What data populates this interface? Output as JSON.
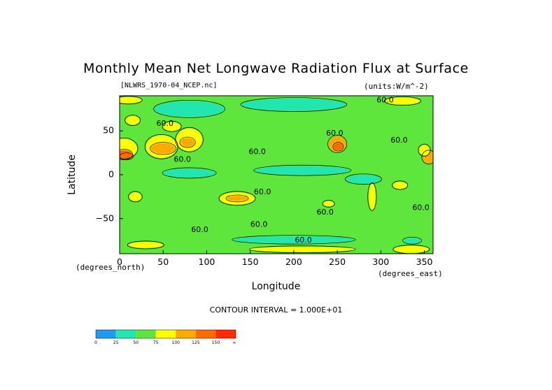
{
  "title": "Monthly Mean Net Longwave Radiation Flux at Surface",
  "file_label": "[NLWRS_1970-04_NCEP.nc]",
  "units_label": "(units:W/m^-2)",
  "y_axis_label": "Latitude",
  "x_axis_label": "Longitude",
  "y_units_label": "(degrees_north)",
  "x_units_label": "(degrees_east)",
  "contour_interval_label": "CONTOUR INTERVAL = 1.000E+01",
  "chart_data": {
    "type": "heatmap",
    "title": "Monthly Mean Net Longwave Radiation Flux at Surface",
    "xlabel": "Longitude",
    "ylabel": "Latitude",
    "xlim": [
      0,
      360
    ],
    "ylim": [
      -90,
      90
    ],
    "x_ticks": [
      "0",
      "50",
      "100",
      "150",
      "200",
      "250",
      "300",
      "350"
    ],
    "x_tick_values": [
      0,
      50,
      100,
      150,
      200,
      250,
      300,
      350
    ],
    "y_ticks": [
      "50",
      "0",
      "−50"
    ],
    "y_tick_values": [
      50,
      0,
      -50
    ],
    "background_value": 60,
    "contour_labels": [
      {
        "text": "60.0",
        "lon": 52,
        "lat": 58
      },
      {
        "text": "60.0",
        "lon": 72,
        "lat": 17
      },
      {
        "text": "60.0",
        "lon": 158,
        "lat": 26
      },
      {
        "text": "60.0",
        "lon": 247,
        "lat": 47
      },
      {
        "text": "60.0",
        "lon": 321,
        "lat": 39
      },
      {
        "text": "60.0",
        "lon": 164,
        "lat": -20
      },
      {
        "text": "60.0",
        "lon": 236,
        "lat": -43
      },
      {
        "text": "60.0",
        "lon": 346,
        "lat": -38
      },
      {
        "text": "60.0",
        "lon": 92,
        "lat": -63
      },
      {
        "text": "60.0",
        "lon": 160,
        "lat": -57
      },
      {
        "text": "60.0",
        "lon": 211,
        "lat": -75
      },
      {
        "text": "60.0",
        "lon": 305,
        "lat": 85
      }
    ],
    "features": [
      {
        "value": 90,
        "lon": 5,
        "lat": 30,
        "w": 30,
        "h": 22
      },
      {
        "value": 130,
        "lon": 5,
        "lat": 23,
        "w": 18,
        "h": 10
      },
      {
        "value": 140,
        "lon": 8,
        "lat": 21,
        "w": 14,
        "h": 6
      },
      {
        "value": 90,
        "lon": 48,
        "lat": 32,
        "w": 36,
        "h": 26
      },
      {
        "value": 120,
        "lon": 50,
        "lat": 30,
        "w": 28,
        "h": 12
      },
      {
        "value": 85,
        "lon": 80,
        "lat": 40,
        "w": 30,
        "h": 26
      },
      {
        "value": 115,
        "lon": 78,
        "lat": 37,
        "w": 16,
        "h": 10
      },
      {
        "value": 80,
        "lon": 15,
        "lat": 62,
        "w": 16,
        "h": 10
      },
      {
        "value": 80,
        "lon": 60,
        "lat": 55,
        "w": 20,
        "h": 10
      },
      {
        "value": 110,
        "lon": 250,
        "lat": 35,
        "w": 20,
        "h": 18
      },
      {
        "value": 130,
        "lon": 251,
        "lat": 32,
        "w": 10,
        "h": 8
      },
      {
        "value": 110,
        "lon": 355,
        "lat": 20,
        "w": 14,
        "h": 14
      },
      {
        "value": 85,
        "lon": 350,
        "lat": 28,
        "w": 12,
        "h": 12
      },
      {
        "value": 90,
        "lon": 135,
        "lat": -27,
        "w": 40,
        "h": 14
      },
      {
        "value": 105,
        "lon": 135,
        "lat": -27,
        "w": 24,
        "h": 6
      },
      {
        "value": 85,
        "lon": 18,
        "lat": -25,
        "w": 14,
        "h": 10
      },
      {
        "value": 85,
        "lon": 290,
        "lat": -25,
        "w": 8,
        "h": 30
      },
      {
        "value": 80,
        "lon": 240,
        "lat": -33,
        "w": 12,
        "h": 6
      },
      {
        "value": 80,
        "lon": 322,
        "lat": -12,
        "w": 16,
        "h": 8
      },
      {
        "value": 85,
        "lon": 10,
        "lat": 85,
        "w": 30,
        "h": 7
      },
      {
        "value": 85,
        "lon": 325,
        "lat": 84,
        "w": 40,
        "h": 8
      },
      {
        "value": 85,
        "lon": 210,
        "lat": -85,
        "w": 120,
        "h": 6
      },
      {
        "value": 85,
        "lon": 30,
        "lat": -80,
        "w": 40,
        "h": 7
      },
      {
        "value": 85,
        "lon": 335,
        "lat": -85,
        "w": 40,
        "h": 8
      },
      {
        "value": 40,
        "lon": 80,
        "lat": 75,
        "w": 80,
        "h": 18
      },
      {
        "value": 40,
        "lon": 200,
        "lat": 80,
        "w": 120,
        "h": 14
      },
      {
        "value": 40,
        "lon": 210,
        "lat": 5,
        "w": 110,
        "h": 10
      },
      {
        "value": 40,
        "lon": 80,
        "lat": 2,
        "w": 60,
        "h": 10
      },
      {
        "value": 40,
        "lon": 280,
        "lat": -5,
        "w": 40,
        "h": 10
      },
      {
        "value": 40,
        "lon": 200,
        "lat": -74,
        "w": 140,
        "h": 8
      },
      {
        "value": 25,
        "lon": 336,
        "lat": -75,
        "w": 20,
        "h": 6
      }
    ],
    "colorbar": {
      "ticks": [
        "0",
        "25",
        "50",
        "75",
        "100",
        "125",
        "150",
        "∞"
      ],
      "colors": [
        "#1e9bf0",
        "#22e6b0",
        "#5ee63c",
        "#ffff00",
        "#ffaa00",
        "#ff6a00",
        "#ff2a00"
      ],
      "bounds": [
        0,
        25,
        50,
        75,
        100,
        125,
        150
      ]
    }
  }
}
